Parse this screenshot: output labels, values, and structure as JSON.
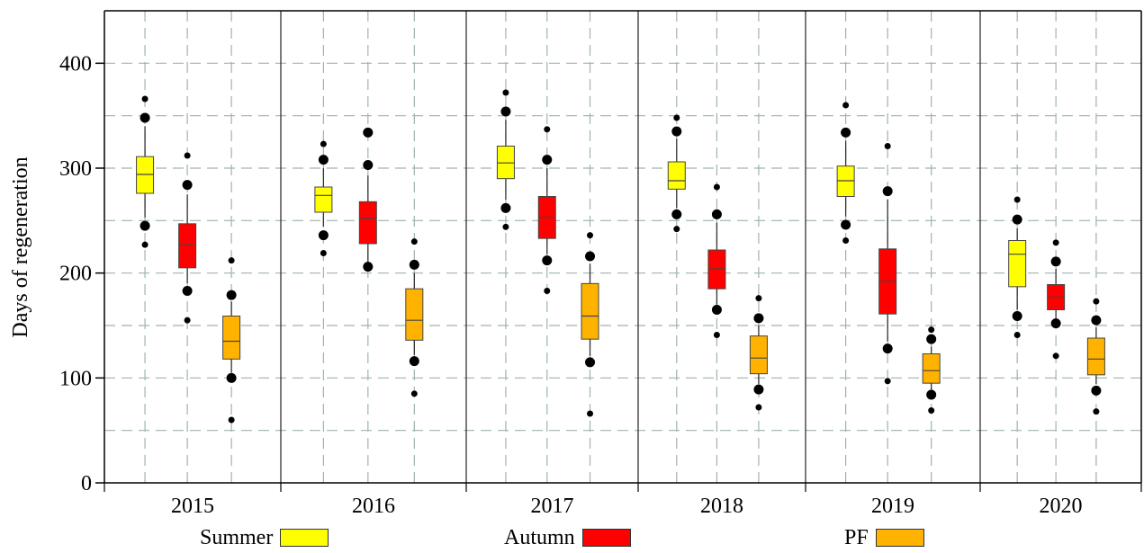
{
  "chart_data": {
    "type": "box",
    "title": "",
    "xlabel": "",
    "ylabel": "Days of regeneration",
    "ylim": [
      0,
      450
    ],
    "yticks": [
      0,
      100,
      200,
      300,
      400
    ],
    "grid": true,
    "legend_position": "bottom",
    "categories": [
      "2015",
      "2016",
      "2017",
      "2018",
      "2019",
      "2020"
    ],
    "series": [
      {
        "name": "Summer",
        "color": "#ffff00",
        "boxes": [
          {
            "q1": 276,
            "median": 294,
            "q3": 311,
            "whisker_low": 253,
            "whisker_high": 340,
            "outliers": [
              366,
              348,
              245,
              227
            ]
          },
          {
            "q1": 258,
            "median": 274,
            "q3": 282,
            "whisker_low": 244,
            "whisker_high": 300,
            "outliers": [
              323,
              308,
              236,
              219
            ]
          },
          {
            "q1": 290,
            "median": 305,
            "q3": 321,
            "whisker_low": 270,
            "whisker_high": 346,
            "outliers": [
              372,
              354,
              262,
              244
            ]
          },
          {
            "q1": 280,
            "median": 288,
            "q3": 306,
            "whisker_low": 262,
            "whisker_high": 328,
            "outliers": [
              348,
              335,
              256,
              242
            ]
          },
          {
            "q1": 273,
            "median": 288,
            "q3": 302,
            "whisker_low": 254,
            "whisker_high": 326,
            "outliers": [
              360,
              334,
              246,
              231
            ]
          },
          {
            "q1": 187,
            "median": 218,
            "q3": 231,
            "whisker_low": 165,
            "whisker_high": 243,
            "outliers": [
              270,
              251,
              159,
              141
            ]
          }
        ]
      },
      {
        "name": "Autumn",
        "color": "#ff0000",
        "boxes": [
          {
            "q1": 205,
            "median": 227,
            "q3": 247,
            "whisker_low": 190,
            "whisker_high": 275,
            "outliers": [
              312,
              284,
              183,
              155
            ]
          },
          {
            "q1": 228,
            "median": 252,
            "q3": 268,
            "whisker_low": 210,
            "whisker_high": 293,
            "outliers": [
              334,
              303,
              206
            ]
          },
          {
            "q1": 233,
            "median": 253,
            "q3": 273,
            "whisker_low": 218,
            "whisker_high": 300,
            "outliers": [
              337,
              308,
              212,
              183
            ]
          },
          {
            "q1": 185,
            "median": 204,
            "q3": 222,
            "whisker_low": 170,
            "whisker_high": 248,
            "outliers": [
              282,
              256,
              165,
              141
            ]
          },
          {
            "q1": 161,
            "median": 192,
            "q3": 223,
            "whisker_low": 135,
            "whisker_high": 270,
            "outliers": [
              321,
              278,
              128,
              97
            ]
          },
          {
            "q1": 165,
            "median": 177,
            "q3": 189,
            "whisker_low": 155,
            "whisker_high": 204,
            "outliers": [
              229,
              211,
              152,
              121
            ]
          }
        ]
      },
      {
        "name": "PF",
        "color": "#ffb300",
        "boxes": [
          {
            "q1": 118,
            "median": 135,
            "q3": 159,
            "whisker_low": 105,
            "whisker_high": 173,
            "outliers": [
              212,
              179,
              100,
              60
            ]
          },
          {
            "q1": 136,
            "median": 155,
            "q3": 185,
            "whisker_low": 122,
            "whisker_high": 200,
            "outliers": [
              230,
              208,
              116,
              85
            ]
          },
          {
            "q1": 137,
            "median": 159,
            "q3": 190,
            "whisker_low": 121,
            "whisker_high": 209,
            "outliers": [
              236,
              216,
              115,
              66
            ]
          },
          {
            "q1": 104,
            "median": 119,
            "q3": 140,
            "whisker_low": 94,
            "whisker_high": 150,
            "outliers": [
              176,
              157,
              89,
              72
            ]
          },
          {
            "q1": 95,
            "median": 107,
            "q3": 123,
            "whisker_low": 87,
            "whisker_high": 130,
            "outliers": [
              146,
              137,
              84,
              69
            ]
          },
          {
            "q1": 103,
            "median": 118,
            "q3": 138,
            "whisker_low": 94,
            "whisker_high": 148,
            "outliers": [
              173,
              155,
              88,
              68
            ]
          }
        ]
      }
    ]
  }
}
